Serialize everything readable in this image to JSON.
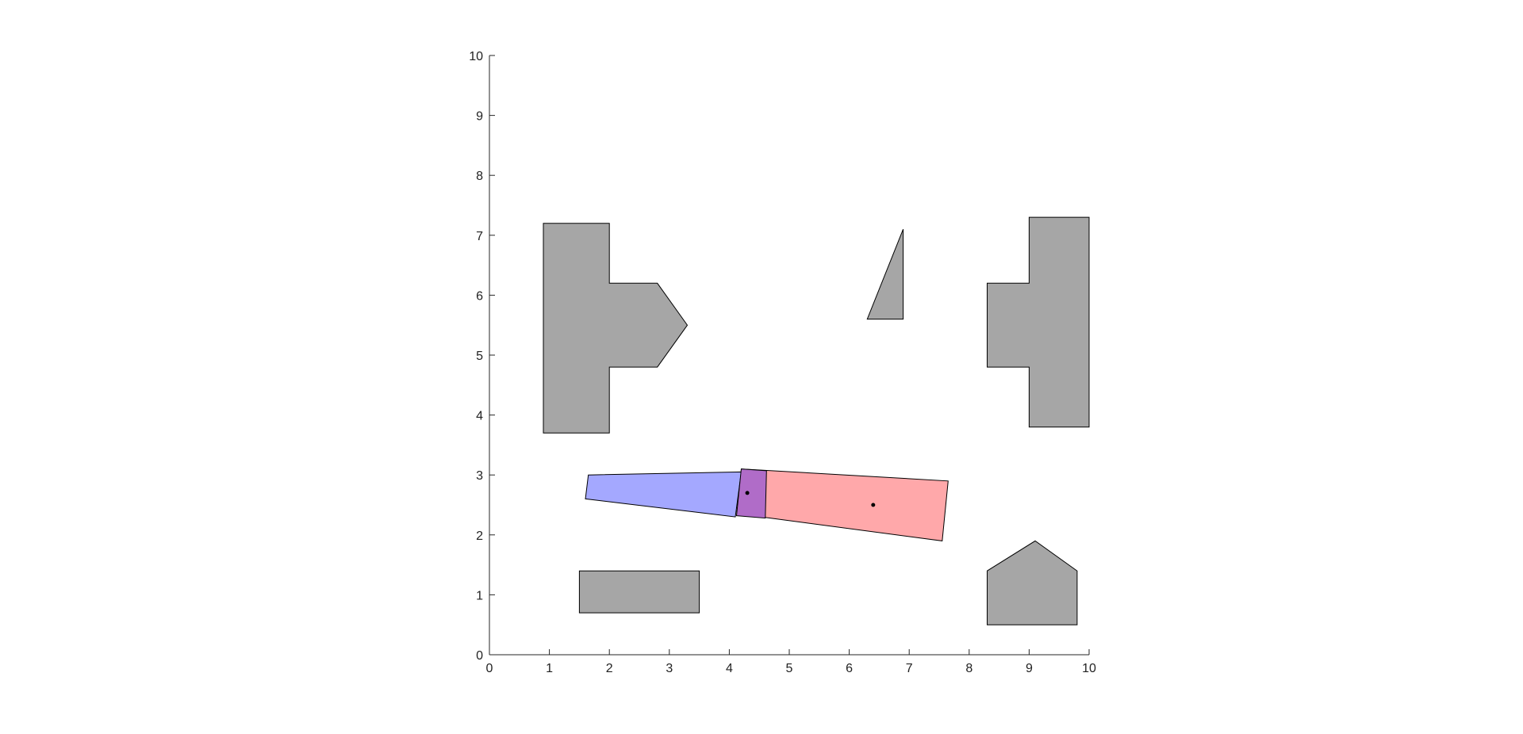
{
  "chart_data": {
    "type": "scatter",
    "title": "",
    "xlabel": "",
    "ylabel": "",
    "xlim": [
      0,
      10
    ],
    "ylim": [
      0,
      10
    ],
    "xticks": [
      "0",
      "1",
      "2",
      "3",
      "4",
      "5",
      "6",
      "7",
      "8",
      "9",
      "10"
    ],
    "yticks": [
      "0",
      "1",
      "2",
      "3",
      "4",
      "5",
      "6",
      "7",
      "8",
      "9",
      "10"
    ],
    "grid": false,
    "legend": "none",
    "obstacle_color": "#a6a6a6",
    "obstacles": [
      {
        "id": "t-shape-left",
        "points": [
          [
            0.9,
            3.7
          ],
          [
            2.0,
            3.7
          ],
          [
            2.0,
            4.8
          ],
          [
            2.8,
            4.8
          ],
          [
            3.3,
            5.5
          ],
          [
            2.8,
            6.2
          ],
          [
            2.0,
            6.2
          ],
          [
            2.0,
            7.2
          ],
          [
            0.9,
            7.2
          ]
        ]
      },
      {
        "id": "triangle",
        "points": [
          [
            6.3,
            5.6
          ],
          [
            6.9,
            5.6
          ],
          [
            6.9,
            7.1
          ]
        ]
      },
      {
        "id": "t-shape-right",
        "points": [
          [
            9.0,
            3.8
          ],
          [
            10.0,
            3.8
          ],
          [
            10.0,
            7.3
          ],
          [
            9.0,
            7.3
          ],
          [
            9.0,
            6.2
          ],
          [
            8.3,
            6.2
          ],
          [
            8.3,
            4.8
          ],
          [
            9.0,
            4.8
          ]
        ]
      },
      {
        "id": "rectangle",
        "points": [
          [
            1.5,
            0.7
          ],
          [
            3.5,
            0.7
          ],
          [
            3.5,
            1.4
          ],
          [
            1.5,
            1.4
          ]
        ]
      },
      {
        "id": "house",
        "points": [
          [
            8.3,
            0.5
          ],
          [
            9.8,
            0.5
          ],
          [
            9.8,
            1.4
          ],
          [
            9.1,
            1.9
          ],
          [
            8.3,
            1.4
          ]
        ]
      }
    ],
    "links": [
      {
        "id": "link-blue",
        "color": "#a4a8ff",
        "points": [
          [
            1.6,
            2.6
          ],
          [
            4.1,
            2.3
          ],
          [
            4.2,
            3.05
          ],
          [
            1.65,
            3.0
          ]
        ]
      },
      {
        "id": "link-red",
        "color": "#ffa8aa",
        "points": [
          [
            4.15,
            2.35
          ],
          [
            7.55,
            1.9
          ],
          [
            7.65,
            2.9
          ],
          [
            4.2,
            3.1
          ]
        ]
      },
      {
        "id": "joint-overlap",
        "color": "#b06cc8",
        "points": [
          [
            4.12,
            2.32
          ],
          [
            4.6,
            2.28
          ],
          [
            4.62,
            3.07
          ],
          [
            4.2,
            3.1
          ]
        ]
      }
    ],
    "joint_points": [
      {
        "id": "joint-1",
        "x": 4.3,
        "y": 2.7
      },
      {
        "id": "joint-2",
        "x": 6.4,
        "y": 2.5
      }
    ]
  }
}
